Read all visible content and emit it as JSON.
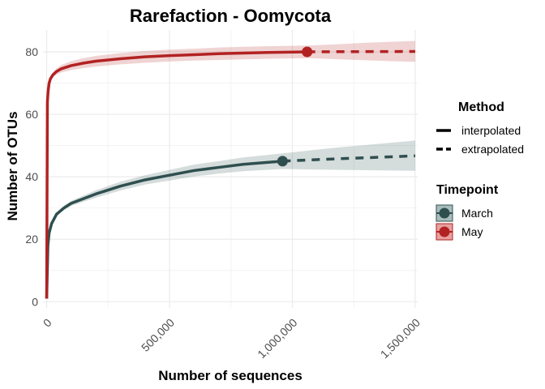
{
  "chart_data": {
    "type": "line",
    "title": "Rarefaction - Oomycota",
    "xlabel": "Number of sequences",
    "ylabel": "Number of OTUs",
    "xlim": [
      -15000,
      1510000
    ],
    "ylim": [
      -2,
      87
    ],
    "x_ticks": [
      0,
      500000,
      1000000,
      1500000
    ],
    "x_tick_labels": [
      "0",
      "500,000",
      "1,000,000",
      "1,500,000"
    ],
    "y_ticks": [
      0,
      20,
      40,
      60,
      80
    ],
    "y_tick_labels": [
      "0",
      "20",
      "40",
      "60",
      "80"
    ],
    "grid": true,
    "legend_position": "right",
    "legends": [
      {
        "title": "Method",
        "entries": [
          {
            "label": "interpolated",
            "style": "solid"
          },
          {
            "label": "extrapolated",
            "style": "dashed"
          }
        ]
      },
      {
        "title": "Timepoint",
        "entries": [
          {
            "label": "March",
            "color": "#2f4f4f",
            "fill": "#a9bcbc"
          },
          {
            "label": "May",
            "color": "#b22222",
            "fill": "#e8a0a0"
          }
        ]
      }
    ],
    "series": [
      {
        "name": "March",
        "color": "#2f4f4f",
        "ribbon_color": "#2f4f4f",
        "interpolated": {
          "x": [
            0,
            5000,
            10000,
            20000,
            40000,
            70000,
            100000,
            150000,
            200000,
            300000,
            400000,
            500000,
            600000,
            700000,
            800000,
            960000
          ],
          "y": [
            1,
            18,
            22,
            25,
            28,
            30,
            31.5,
            33,
            34.5,
            37,
            39,
            40.5,
            42,
            43,
            44,
            45
          ]
        },
        "observed": {
          "x": 960000,
          "y": 45
        },
        "extrapolated": {
          "x": [
            960000,
            1100000,
            1200000,
            1300000,
            1400000,
            1500000
          ],
          "y": [
            45,
            45.5,
            45.8,
            46.1,
            46.4,
            46.7
          ]
        },
        "ci_lower": {
          "x": [
            0,
            5000,
            10000,
            20000,
            40000,
            70000,
            100000,
            150000,
            200000,
            300000,
            400000,
            500000,
            600000,
            700000,
            800000,
            960000,
            1100000,
            1200000,
            1300000,
            1400000,
            1500000
          ],
          "y": [
            1,
            17.5,
            21.5,
            24.5,
            27.5,
            29.3,
            30.7,
            32,
            33.3,
            35.6,
            37.5,
            38.8,
            40.1,
            41,
            41.8,
            42.5,
            42.3,
            42.2,
            42.1,
            42,
            41.9
          ]
        },
        "ci_upper": {
          "x": [
            0,
            5000,
            10000,
            20000,
            40000,
            70000,
            100000,
            150000,
            200000,
            300000,
            400000,
            500000,
            600000,
            700000,
            800000,
            960000,
            1100000,
            1200000,
            1300000,
            1400000,
            1500000
          ],
          "y": [
            1,
            18.5,
            22.5,
            25.5,
            28.5,
            30.7,
            32.3,
            34,
            35.7,
            38.4,
            40.5,
            42.2,
            43.9,
            45,
            46.2,
            47.5,
            48.7,
            49.5,
            50.2,
            50.9,
            51.6
          ]
        }
      },
      {
        "name": "May",
        "color": "#b22222",
        "ribbon_color": "#b22222",
        "interpolated": {
          "x": [
            0,
            3000,
            6000,
            10000,
            15000,
            25000,
            40000,
            60000,
            100000,
            150000,
            200000,
            300000,
            400000,
            500000,
            600000,
            700000,
            800000,
            900000,
            1060000
          ],
          "y": [
            1,
            64,
            67.5,
            70,
            71.3,
            72.6,
            73.7,
            74.6,
            75.6,
            76.4,
            77,
            77.8,
            78.4,
            78.8,
            79.1,
            79.4,
            79.6,
            79.8,
            80
          ]
        },
        "observed": {
          "x": 1060000,
          "y": 80
        },
        "extrapolated": {
          "x": [
            1060000,
            1200000,
            1300000,
            1400000,
            1500000
          ],
          "y": [
            80,
            80.05,
            80.08,
            80.1,
            80.12
          ]
        },
        "ci_lower": {
          "x": [
            0,
            3000,
            6000,
            10000,
            15000,
            25000,
            40000,
            60000,
            100000,
            150000,
            200000,
            300000,
            400000,
            500000,
            600000,
            700000,
            800000,
            900000,
            1060000,
            1200000,
            1300000,
            1400000,
            1500000
          ],
          "y": [
            1,
            63.2,
            66.7,
            69.2,
            70.5,
            71.8,
            72.7,
            73.4,
            74.2,
            74.8,
            75.3,
            76,
            76.5,
            76.9,
            77.2,
            77.4,
            77.6,
            77.8,
            78,
            77.6,
            77.3,
            77,
            76.8
          ]
        },
        "ci_upper": {
          "x": [
            0,
            3000,
            6000,
            10000,
            15000,
            25000,
            40000,
            60000,
            100000,
            150000,
            200000,
            300000,
            400000,
            500000,
            600000,
            700000,
            800000,
            900000,
            1060000,
            1200000,
            1300000,
            1400000,
            1500000
          ],
          "y": [
            1,
            64.8,
            68.3,
            70.8,
            72.1,
            73.4,
            74.7,
            75.8,
            77,
            78,
            78.7,
            79.6,
            80.3,
            80.7,
            81,
            81.4,
            81.6,
            81.8,
            82,
            82.5,
            82.9,
            83.2,
            83.5
          ]
        }
      }
    ]
  }
}
